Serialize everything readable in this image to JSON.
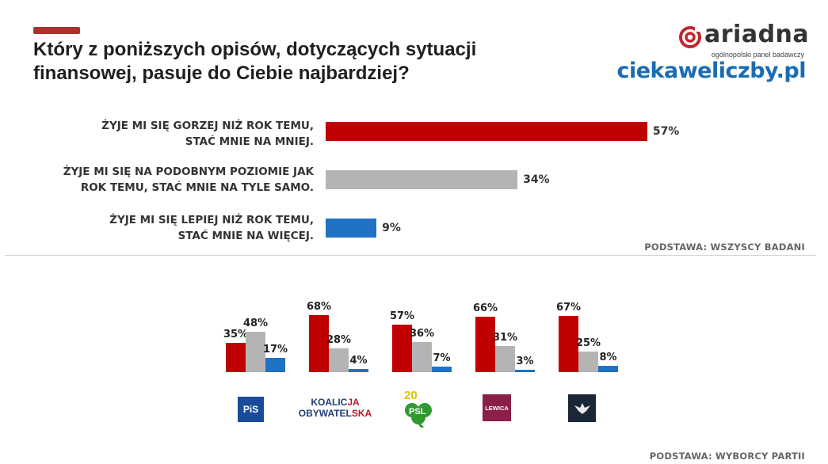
{
  "title_lines": [
    "Który z poniższych opisów, dotyczących sytuacji",
    "finansowej, pasuje do Ciebie najbardziej?"
  ],
  "brand": {
    "logo_name": "ariadna",
    "logo_sub": "ogólnopolski panel badawczy",
    "site": "ciekaweliczby.pl"
  },
  "colors": {
    "worse": "#c00000",
    "same": "#b4b4b4",
    "better": "#1f72c4",
    "accent": "#c0272d",
    "brand_blue": "#1a6cb5"
  },
  "chart_data": [
    {
      "type": "bar",
      "orientation": "horizontal",
      "categories": [
        [
          "ŻYJE MI SIĘ GORZEJ NIŻ ROK TEMU,",
          "STAĆ MNIE NA MNIEJ."
        ],
        [
          "ŻYJE MI SIĘ NA PODOBNYM POZIOMIE JAK",
          "ROK TEMU, STAĆ MNIE NA TYLE SAMO."
        ],
        [
          "ŻYJE MI SIĘ LEPIEJ NIŻ ROK TEMU,",
          "STAĆ MNIE NA WIĘCEJ."
        ]
      ],
      "values": [
        57,
        34,
        9
      ],
      "value_labels": [
        "57%",
        "34%",
        "9%"
      ],
      "footnote": "PODSTAWA: WSZYSCY BADANI"
    },
    {
      "type": "bar",
      "orientation": "vertical-grouped",
      "categories": [
        "PiS",
        "KOALICJA OBYWATELSKA",
        "PSL",
        "LEWICA",
        "KONFEDERACJA"
      ],
      "series": [
        {
          "values": [
            35,
            68,
            57,
            66,
            67
          ],
          "labels": [
            "35%",
            "68%",
            "57%",
            "66%",
            "67%"
          ]
        },
        {
          "values": [
            48,
            28,
            36,
            31,
            25
          ],
          "labels": [
            "48%",
            "28%",
            "36%",
            "31%",
            "25%"
          ]
        },
        {
          "values": [
            17,
            4,
            7,
            3,
            8
          ],
          "labels": [
            "17%",
            "4%",
            "7%",
            "3%",
            "8%"
          ]
        }
      ],
      "footnote": "PODSTAWA: WYBORCY PARTII"
    }
  ],
  "party_logos": {
    "pis": "PiS",
    "ko_line1_a": "KOALIC",
    "ko_line1_b": "JA",
    "ko_line2_a": "OBYWATEL",
    "ko_line2_b": "SKA",
    "psl_num": "20",
    "psl_text": "PSL",
    "lewica": "LEWICA",
    "konf_icon": "eagle-icon"
  }
}
